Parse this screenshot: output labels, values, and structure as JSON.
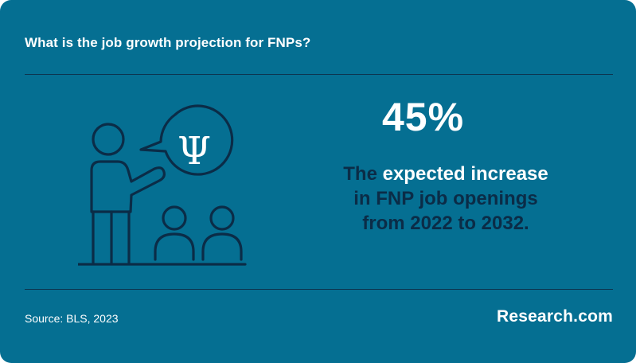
{
  "header": {
    "question": "What is the job growth projection for FNPs?"
  },
  "illustration": {
    "symbol": "Ψ",
    "icon": "teacher-with-psi-speech-bubble-and-two-students"
  },
  "stat": {
    "value": "45%",
    "description_dark": "The ",
    "description_line1_rest": "expected increase",
    "description_line2": "in FNP job openings",
    "description_line3": "from 2022 to 2032."
  },
  "footer": {
    "source": "Source: BLS, 2023",
    "brand": "Research.com"
  },
  "colors": {
    "background": "#056f92",
    "dark_text": "#0b2c47",
    "divider": "#0c3550",
    "light_text": "#ffffff"
  }
}
